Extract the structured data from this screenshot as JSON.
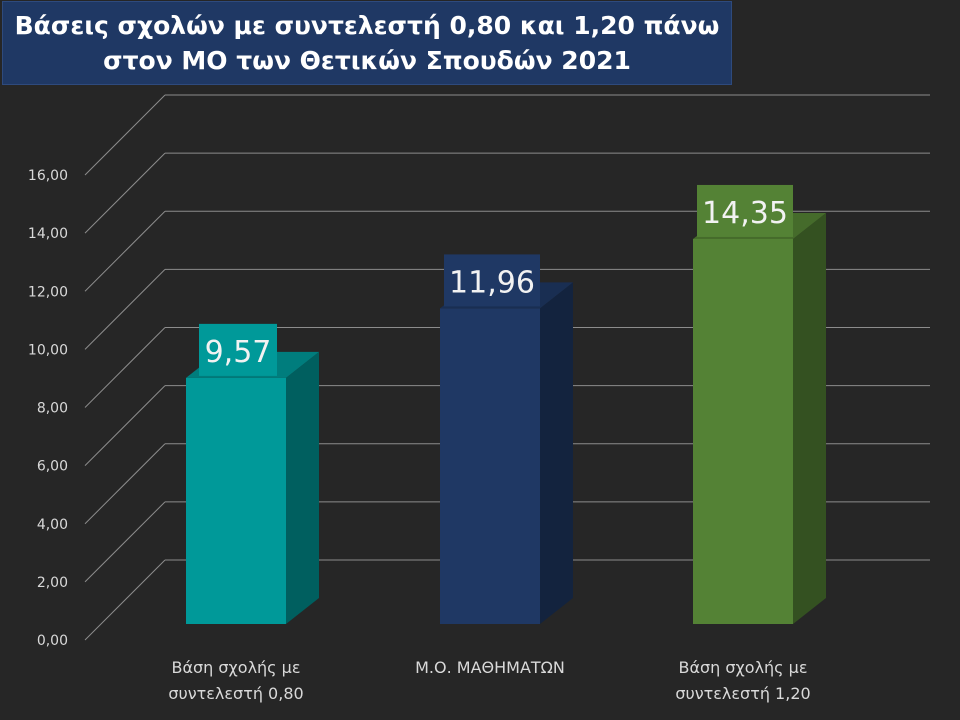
{
  "title": {
    "line1": "Βάσεις σχολών με συντελεστή 0,80 και 1,20 πάνω",
    "line2": "στον ΜΟ των Θετικών Σπουδών 2021"
  },
  "chart_data": {
    "type": "bar",
    "title": "Βάσεις σχολών με συντελεστή 0,80 και 1,20 πάνω στον ΜΟ των Θετικών Σπουδών 2021",
    "categories": [
      [
        "Βάση σχολής με",
        "συντελεστή 0,80"
      ],
      [
        "Μ.Ο. ΜΑΘΗΜΑΤΩΝ"
      ],
      [
        "Βάση σχολής με",
        "συντελεστή 1,20"
      ]
    ],
    "values": [
      9.57,
      11.96,
      14.35
    ],
    "data_labels": [
      "9,57",
      "11,96",
      "14,35"
    ],
    "colors": [
      "#009999",
      "#1f3864",
      "#548235"
    ],
    "ylim": [
      0,
      16
    ],
    "yticks": [
      "0,00",
      "2,00",
      "4,00",
      "6,00",
      "8,00",
      "10,00",
      "12,00",
      "14,00",
      "16,00"
    ],
    "grid": true,
    "style": "3d-column"
  }
}
